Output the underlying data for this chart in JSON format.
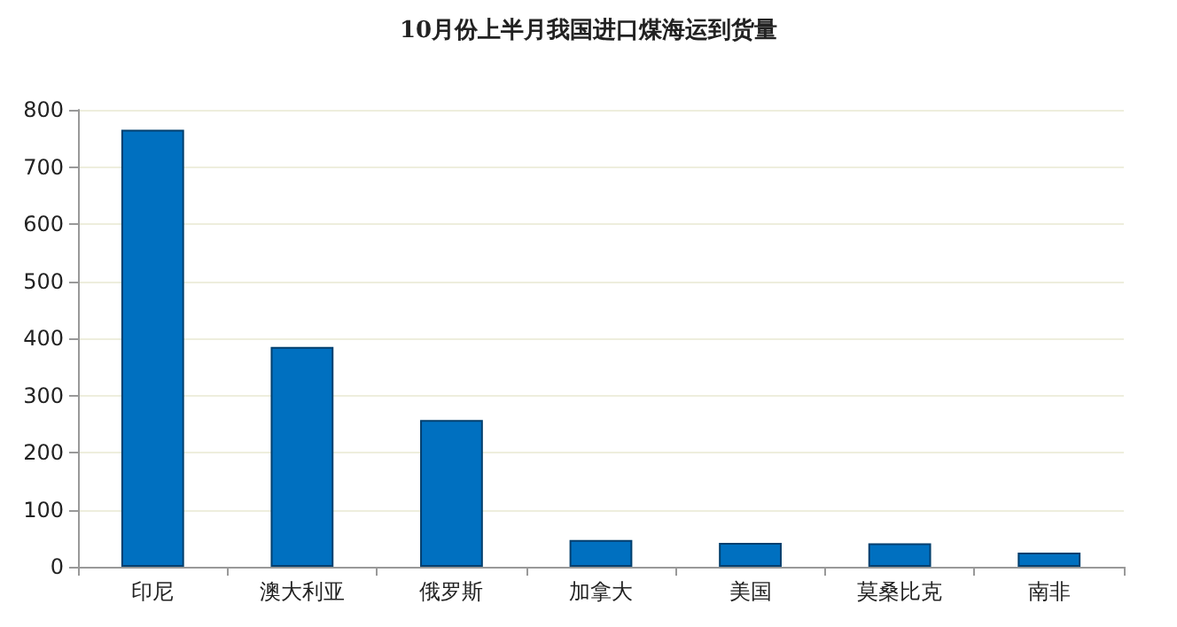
{
  "chart_data": {
    "type": "bar",
    "title": "10月份上半月我国进口煤海运到货量",
    "categories": [
      "印尼",
      "澳大利亚",
      "俄罗斯",
      "加拿大",
      "美国",
      "莫桑比克",
      "南非"
    ],
    "values": [
      765,
      385,
      257,
      47,
      42,
      41,
      25
    ],
    "color": "#0070c0",
    "ylim": [
      0,
      800
    ],
    "yticks": [
      0,
      100,
      200,
      300,
      400,
      500,
      600,
      700,
      800
    ],
    "grid": "y"
  }
}
